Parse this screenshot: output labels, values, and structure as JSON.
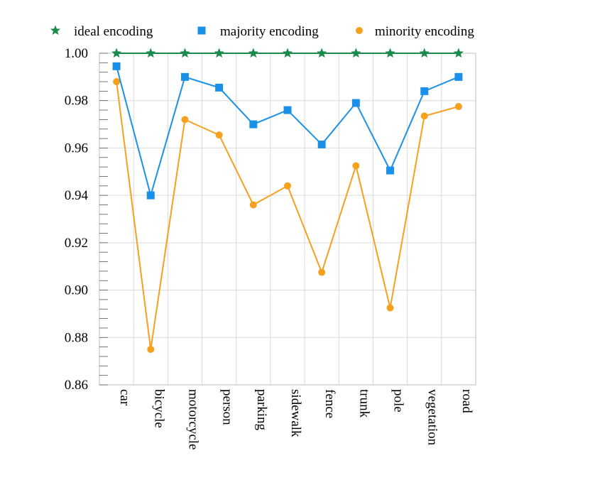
{
  "chart_data": {
    "type": "line",
    "categories": [
      "car",
      "bicycle",
      "motorcycle",
      "person",
      "parking",
      "sidewalk",
      "fence",
      "trunk",
      "pole",
      "vegetation",
      "road"
    ],
    "ylim": [
      0.86,
      1.0
    ],
    "yticks": [
      "0.86",
      "0.88",
      "0.90",
      "0.92",
      "0.94",
      "0.96",
      "0.98",
      "1.00"
    ],
    "ytick_values": [
      0.86,
      0.88,
      0.9,
      0.92,
      0.94,
      0.96,
      0.98,
      1.0
    ],
    "grid": true,
    "legend_position": "top",
    "series": [
      {
        "name": "ideal encoding",
        "marker": "star",
        "color": "#1a8a4a",
        "values": [
          1.0,
          1.0,
          1.0,
          1.0,
          1.0,
          1.0,
          1.0,
          1.0,
          1.0,
          1.0,
          1.0
        ]
      },
      {
        "name": "majority encoding",
        "marker": "square",
        "color": "#1a90e8",
        "values": [
          0.9945,
          0.94,
          0.99,
          0.9855,
          0.97,
          0.976,
          0.9615,
          0.979,
          0.9505,
          0.984,
          0.99
        ]
      },
      {
        "name": "minority encoding",
        "marker": "circle",
        "color": "#f5a01e",
        "values": [
          0.988,
          0.875,
          0.972,
          0.9655,
          0.936,
          0.944,
          0.9075,
          0.9525,
          0.8925,
          0.9735,
          0.9775
        ]
      }
    ]
  }
}
